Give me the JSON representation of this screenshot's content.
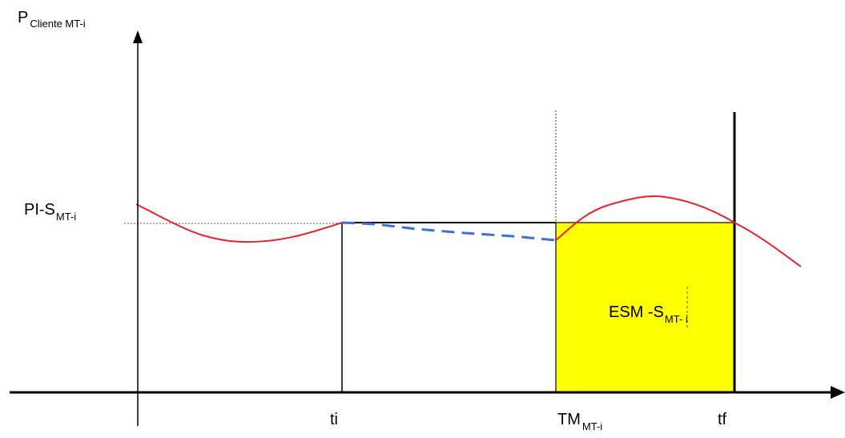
{
  "labels": {
    "y_axis_main": "P",
    "y_axis_sub": "Cliente MT-i",
    "threshold_main": "PI-S",
    "threshold_sub": "MT-i",
    "area_main": "ESM -S",
    "area_sub": "MT- i",
    "x_ti": "ti",
    "x_tm_main": "TM",
    "x_tm_sub": "MT-i",
    "x_tf": "tf"
  },
  "colors": {
    "axis": "#000000",
    "power_curve": "#e8202a",
    "dashed_projection": "#3c6fe0",
    "shaded_area_fill": "#ffff00",
    "shaded_area_stroke": "#333333",
    "threshold_guide": "#555555"
  },
  "icons": {
    "y_axis_arrow": "arrow-up-icon",
    "x_axis_arrow": "arrow-right-icon"
  }
}
